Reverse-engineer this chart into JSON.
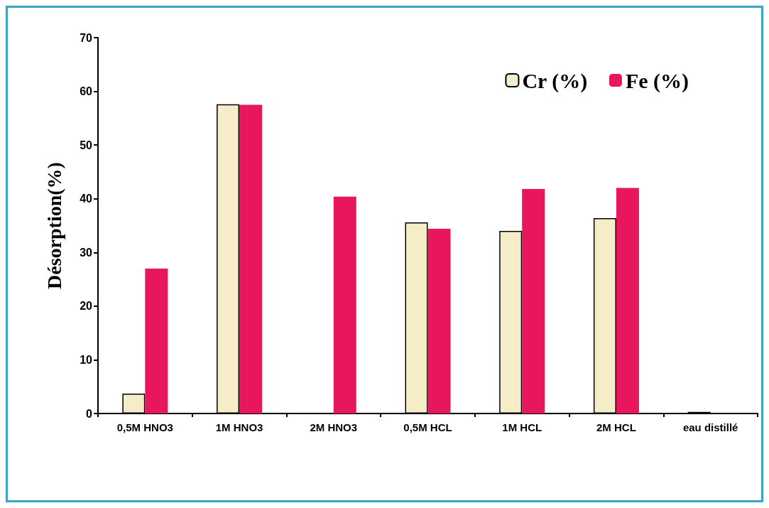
{
  "chart_data": {
    "type": "bar",
    "ylabel": "Désorption(%)",
    "categories": [
      "0,5M HNO3",
      "1M HNO3",
      "2M HNO3",
      "0,5M HCL",
      "1M HCL",
      "2M HCL",
      "eau distillé"
    ],
    "series": [
      {
        "name": "Cr (%)",
        "color": "#f5ecc8",
        "values": [
          3.7,
          57.6,
          null,
          35.6,
          34.0,
          36.4,
          0.3
        ]
      },
      {
        "name": "Fe (%)",
        "color": "#e8175d",
        "values": [
          27.0,
          57.5,
          40.4,
          34.4,
          41.8,
          42.0,
          0
        ]
      }
    ],
    "ylim": [
      0,
      70
    ],
    "yticks": [
      0,
      10,
      20,
      30,
      40,
      50,
      60,
      70
    ],
    "grid": false,
    "legend": "top right"
  }
}
